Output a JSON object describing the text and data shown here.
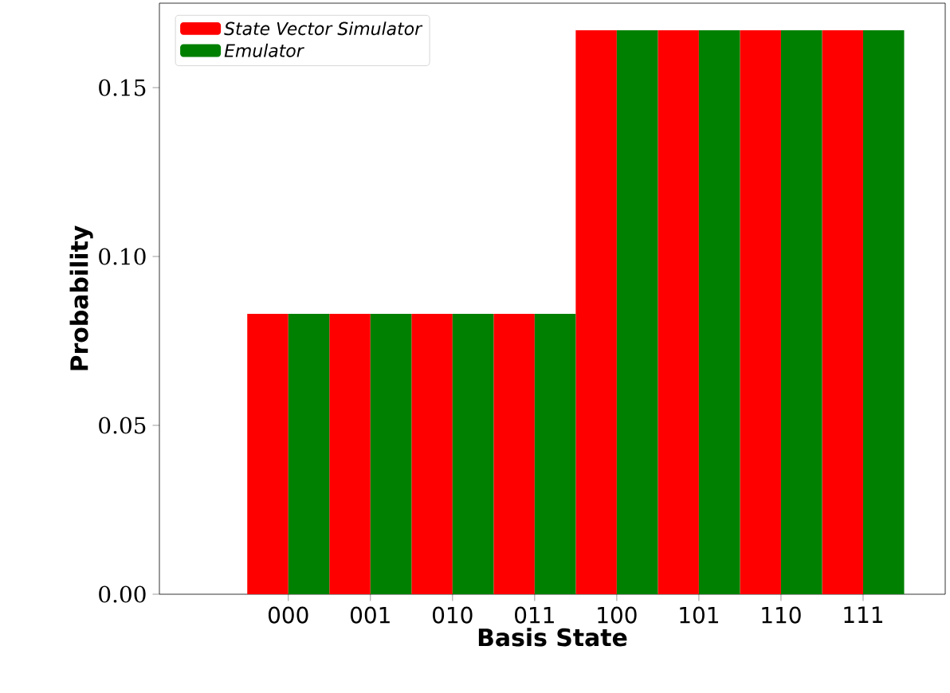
{
  "chart_data": {
    "type": "bar",
    "xlabel": "Basis State",
    "ylabel": "Probability",
    "categories": [
      "000",
      "001",
      "010",
      "011",
      "100",
      "101",
      "110",
      "111"
    ],
    "series": [
      {
        "name": "State Vector Simulator",
        "color": "#ff0000",
        "values": [
          0.083,
          0.083,
          0.083,
          0.083,
          0.167,
          0.167,
          0.167,
          0.167
        ]
      },
      {
        "name": "Emulator",
        "color": "#008000",
        "values": [
          0.083,
          0.083,
          0.083,
          0.083,
          0.167,
          0.167,
          0.167,
          0.167
        ]
      }
    ],
    "ylim": [
      0,
      0.175
    ],
    "yticks": [
      {
        "value": 0,
        "label": "0.00"
      },
      {
        "value": 0.05,
        "label": "0.05"
      },
      {
        "value": 0.1,
        "label": "0.10"
      },
      {
        "value": 0.15,
        "label": "0.15"
      }
    ],
    "legend": "top left"
  }
}
